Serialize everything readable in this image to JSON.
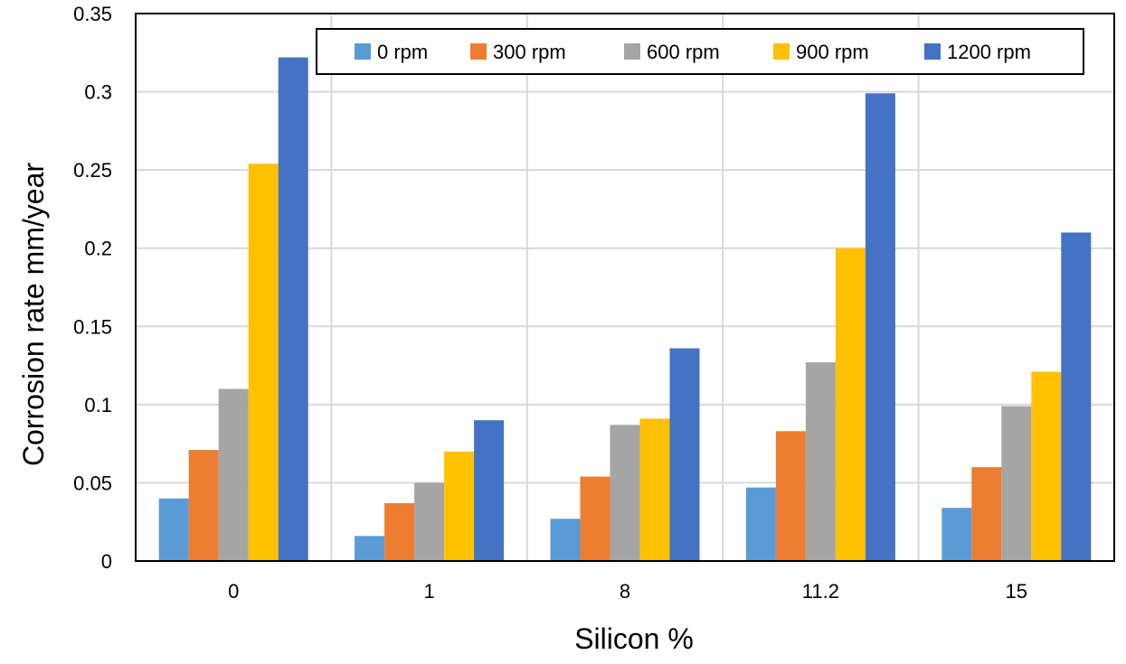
{
  "chart_data": {
    "type": "bar",
    "title": "",
    "xlabel": "Silicon %",
    "ylabel": "Corrosion rate mm/year",
    "ylim": [
      0,
      0.35
    ],
    "yticks": [
      "0",
      "0.05",
      "0.1",
      "0.15",
      "0.2",
      "0.25",
      "0.3",
      "0.35"
    ],
    "categories": [
      "0",
      "1",
      "8",
      "11.2",
      "15"
    ],
    "grid": true,
    "legend_position": "top-right",
    "series": [
      {
        "name": "0 rpm",
        "color": "#5b9bd5",
        "values": [
          0.04,
          0.016,
          0.027,
          0.047,
          0.034
        ]
      },
      {
        "name": "300 rpm",
        "color": "#ed7d31",
        "values": [
          0.071,
          0.037,
          0.054,
          0.083,
          0.06
        ]
      },
      {
        "name": "600 rpm",
        "color": "#a5a5a5",
        "values": [
          0.11,
          0.05,
          0.087,
          0.127,
          0.099
        ]
      },
      {
        "name": "900 rpm",
        "color": "#ffc000",
        "values": [
          0.254,
          0.07,
          0.091,
          0.2,
          0.121
        ]
      },
      {
        "name": "1200 rpm",
        "color": "#4472c4",
        "values": [
          0.322,
          0.09,
          0.136,
          0.299,
          0.21
        ]
      }
    ]
  }
}
